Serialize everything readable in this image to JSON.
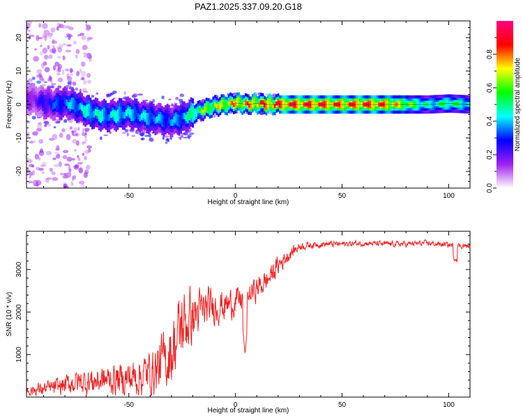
{
  "title": "PAZ1.2025.337.09.20.G18",
  "chart_data": [
    {
      "type": "heatmap",
      "name": "spectrogram",
      "xlabel": "Height of straight line (km)",
      "ylabel": "Frequency (Hz)",
      "xlim": [
        -98,
        110
      ],
      "ylim": [
        -25,
        25
      ],
      "xticks": [
        -50,
        0,
        50,
        100
      ],
      "yticks": [
        -20,
        -10,
        0,
        10,
        20
      ],
      "colorbar": {
        "label": "Normalized spectral amplitude",
        "range": [
          0,
          1
        ],
        "ticks": [
          0.0,
          0.2,
          0.4,
          0.6,
          0.8
        ],
        "colors": [
          "#ffffff",
          "#a020f0",
          "#0000ff",
          "#00ffff",
          "#00ff00",
          "#ffff00",
          "#ff0000",
          "#ff0080"
        ]
      },
      "ridge": {
        "x": [
          -95,
          -90,
          -85,
          -80,
          -75,
          -70,
          -65,
          -60,
          -55,
          -50,
          -45,
          -40,
          -35,
          -30,
          -25,
          -20,
          -15,
          -10,
          -5,
          0,
          5,
          10,
          15,
          20,
          30,
          40,
          50,
          60,
          70,
          80,
          90,
          100,
          110
        ],
        "freq": [
          1.5,
          0.5,
          0,
          0.5,
          -0.5,
          -2,
          -3,
          -3.5,
          -3,
          -2.5,
          -3.5,
          -4,
          -4.5,
          -5,
          -4,
          -2.5,
          -1.5,
          -0.5,
          0,
          0.5,
          0,
          0.3,
          0,
          0,
          0,
          0,
          0,
          0,
          0,
          0,
          0,
          0.3,
          0
        ],
        "amp": [
          0.2,
          0.3,
          0.35,
          0.4,
          0.45,
          0.5,
          0.5,
          0.45,
          0.5,
          0.45,
          0.45,
          0.45,
          0.4,
          0.4,
          0.45,
          0.6,
          0.7,
          0.75,
          0.8,
          0.85,
          0.85,
          0.9,
          0.92,
          0.95,
          0.95,
          0.95,
          0.9,
          0.95,
          0.9,
          0.7,
          0.5,
          0.6,
          0.5
        ]
      }
    },
    {
      "type": "line",
      "name": "snr",
      "xlabel": "Height of straight line (km)",
      "ylabel": "SNR (10 * v/v)",
      "xlim": [
        -98,
        110
      ],
      "ylim": [
        0,
        3900
      ],
      "xticks": [
        -50,
        0,
        50,
        100
      ],
      "yticks": [
        1000,
        2000,
        3000
      ],
      "color": "#ee2222",
      "envelope": {
        "x": [
          -98,
          -85,
          -75,
          -65,
          -55,
          -45,
          -38,
          -32,
          -28,
          -25,
          -20,
          -15,
          -10,
          -5,
          0,
          5,
          10,
          15,
          20,
          25,
          30,
          40,
          50,
          60,
          70,
          80,
          90,
          100,
          105,
          110
        ],
        "mean": [
          150,
          220,
          350,
          380,
          420,
          480,
          620,
          900,
          1300,
          1700,
          1900,
          2050,
          2150,
          2150,
          2250,
          2350,
          2550,
          2750,
          3100,
          3350,
          3550,
          3600,
          3600,
          3620,
          3600,
          3600,
          3620,
          3580,
          3560,
          3550
        ],
        "amp": [
          150,
          200,
          300,
          350,
          400,
          500,
          600,
          800,
          900,
          900,
          700,
          500,
          450,
          400,
          350,
          300,
          300,
          280,
          250,
          180,
          100,
          80,
          70,
          70,
          70,
          70,
          70,
          70,
          70,
          70
        ]
      },
      "annotation_dip": {
        "x": 4.5,
        "y": 1000
      }
    }
  ]
}
